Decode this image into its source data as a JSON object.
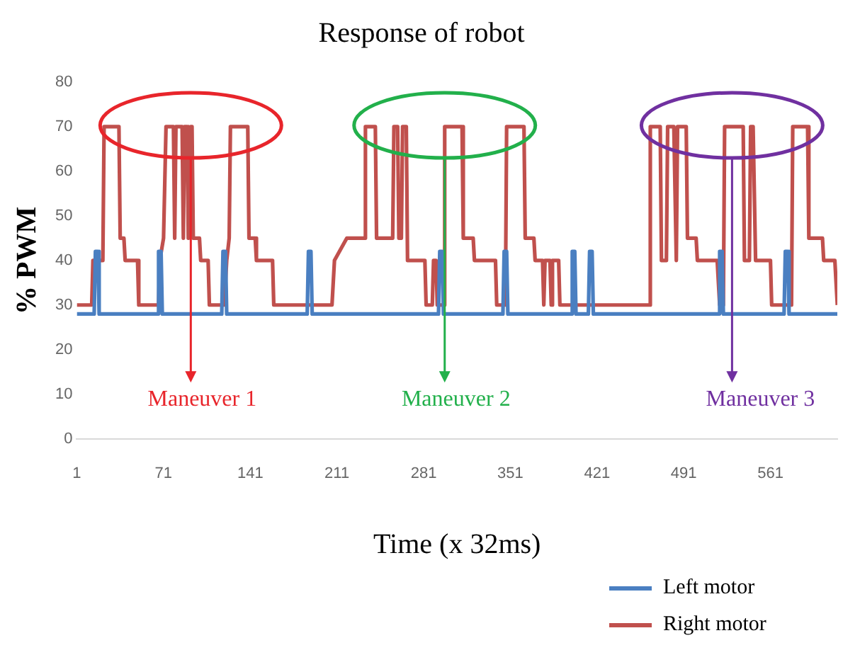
{
  "chart_data": {
    "type": "line",
    "title": "Response of robot",
    "xlabel": "Time (x 32ms)",
    "ylabel": "% PWM",
    "xlim": [
      1,
      615
    ],
    "xticks": [
      1,
      71,
      141,
      211,
      281,
      351,
      421,
      491,
      561
    ],
    "ylim": [
      0,
      80
    ],
    "yticks": [
      0,
      10,
      20,
      30,
      40,
      50,
      60,
      70,
      80
    ],
    "grid": false,
    "legend": "bottom right",
    "marker": "none",
    "line_style": "solid",
    "series": [
      {
        "name": "Left motor",
        "color": "#4a7fc1",
        "x": [
          1,
          15,
          16,
          18,
          19,
          66,
          67,
          69,
          70,
          118,
          119,
          121,
          122,
          187,
          188,
          190,
          191,
          293,
          294,
          296,
          297,
          345,
          346,
          348,
          349,
          400,
          401,
          403,
          404,
          414,
          415,
          417,
          418,
          519,
          520,
          522,
          523,
          572,
          573,
          575,
          576,
          615
        ],
        "values": [
          28,
          28,
          42,
          42,
          28,
          28,
          42,
          42,
          28,
          28,
          42,
          42,
          28,
          28,
          42,
          42,
          28,
          28,
          42,
          42,
          28,
          28,
          42,
          42,
          28,
          28,
          42,
          42,
          28,
          28,
          42,
          42,
          28,
          28,
          42,
          42,
          28,
          28,
          42,
          42,
          28,
          28
        ]
      },
      {
        "name": "Right motor",
        "color": "#c0504d",
        "x": [
          1,
          13,
          14,
          22,
          23,
          35,
          36,
          39,
          40,
          50,
          51,
          67,
          68,
          71,
          73,
          79,
          80,
          81,
          86,
          87,
          88,
          90,
          91,
          93,
          94,
          95,
          100,
          101,
          107,
          108,
          120,
          122,
          124,
          125,
          139,
          140,
          145,
          146,
          159,
          160,
          207,
          209,
          219,
          233,
          234,
          242,
          243,
          256,
          257,
          260,
          261,
          263,
          264,
          267,
          268,
          282,
          283,
          288,
          289,
          291,
          292,
          297,
          298,
          312,
          313,
          321,
          322,
          339,
          340,
          347,
          348,
          362,
          363,
          370,
          371,
          377,
          378,
          379,
          383,
          384,
          385,
          390,
          391,
          463,
          464,
          472,
          473,
          477,
          478,
          483,
          485,
          486,
          493,
          494,
          501,
          502,
          518,
          520,
          523,
          524,
          539,
          540,
          544,
          545,
          547,
          549,
          561,
          562,
          578,
          579,
          591,
          592,
          603,
          604,
          613,
          615
        ],
        "values": [
          30,
          30,
          40,
          40,
          70,
          70,
          45,
          45,
          40,
          40,
          30,
          30,
          40,
          45,
          70,
          70,
          45,
          70,
          70,
          45,
          70,
          70,
          45,
          70,
          70,
          45,
          45,
          40,
          40,
          30,
          30,
          40,
          45,
          70,
          70,
          45,
          45,
          40,
          40,
          30,
          30,
          40,
          45,
          45,
          70,
          70,
          45,
          45,
          70,
          70,
          45,
          45,
          70,
          70,
          40,
          40,
          30,
          30,
          40,
          40,
          30,
          30,
          70,
          70,
          45,
          45,
          40,
          40,
          30,
          30,
          70,
          70,
          45,
          45,
          40,
          40,
          30,
          40,
          40,
          30,
          40,
          40,
          30,
          30,
          70,
          70,
          40,
          40,
          70,
          70,
          40,
          70,
          70,
          45,
          45,
          40,
          40,
          30,
          30,
          70,
          70,
          40,
          40,
          70,
          70,
          40,
          40,
          30,
          30,
          70,
          70,
          45,
          45,
          40,
          40,
          30
        ]
      }
    ],
    "annotations": [
      {
        "text": "Maneuver 1",
        "x": 93,
        "y": 63
      },
      {
        "text": "Maneuver 2",
        "x": 298,
        "y": 63
      },
      {
        "text": "Maneuver 3",
        "x": 530,
        "y": 63
      }
    ]
  }
}
